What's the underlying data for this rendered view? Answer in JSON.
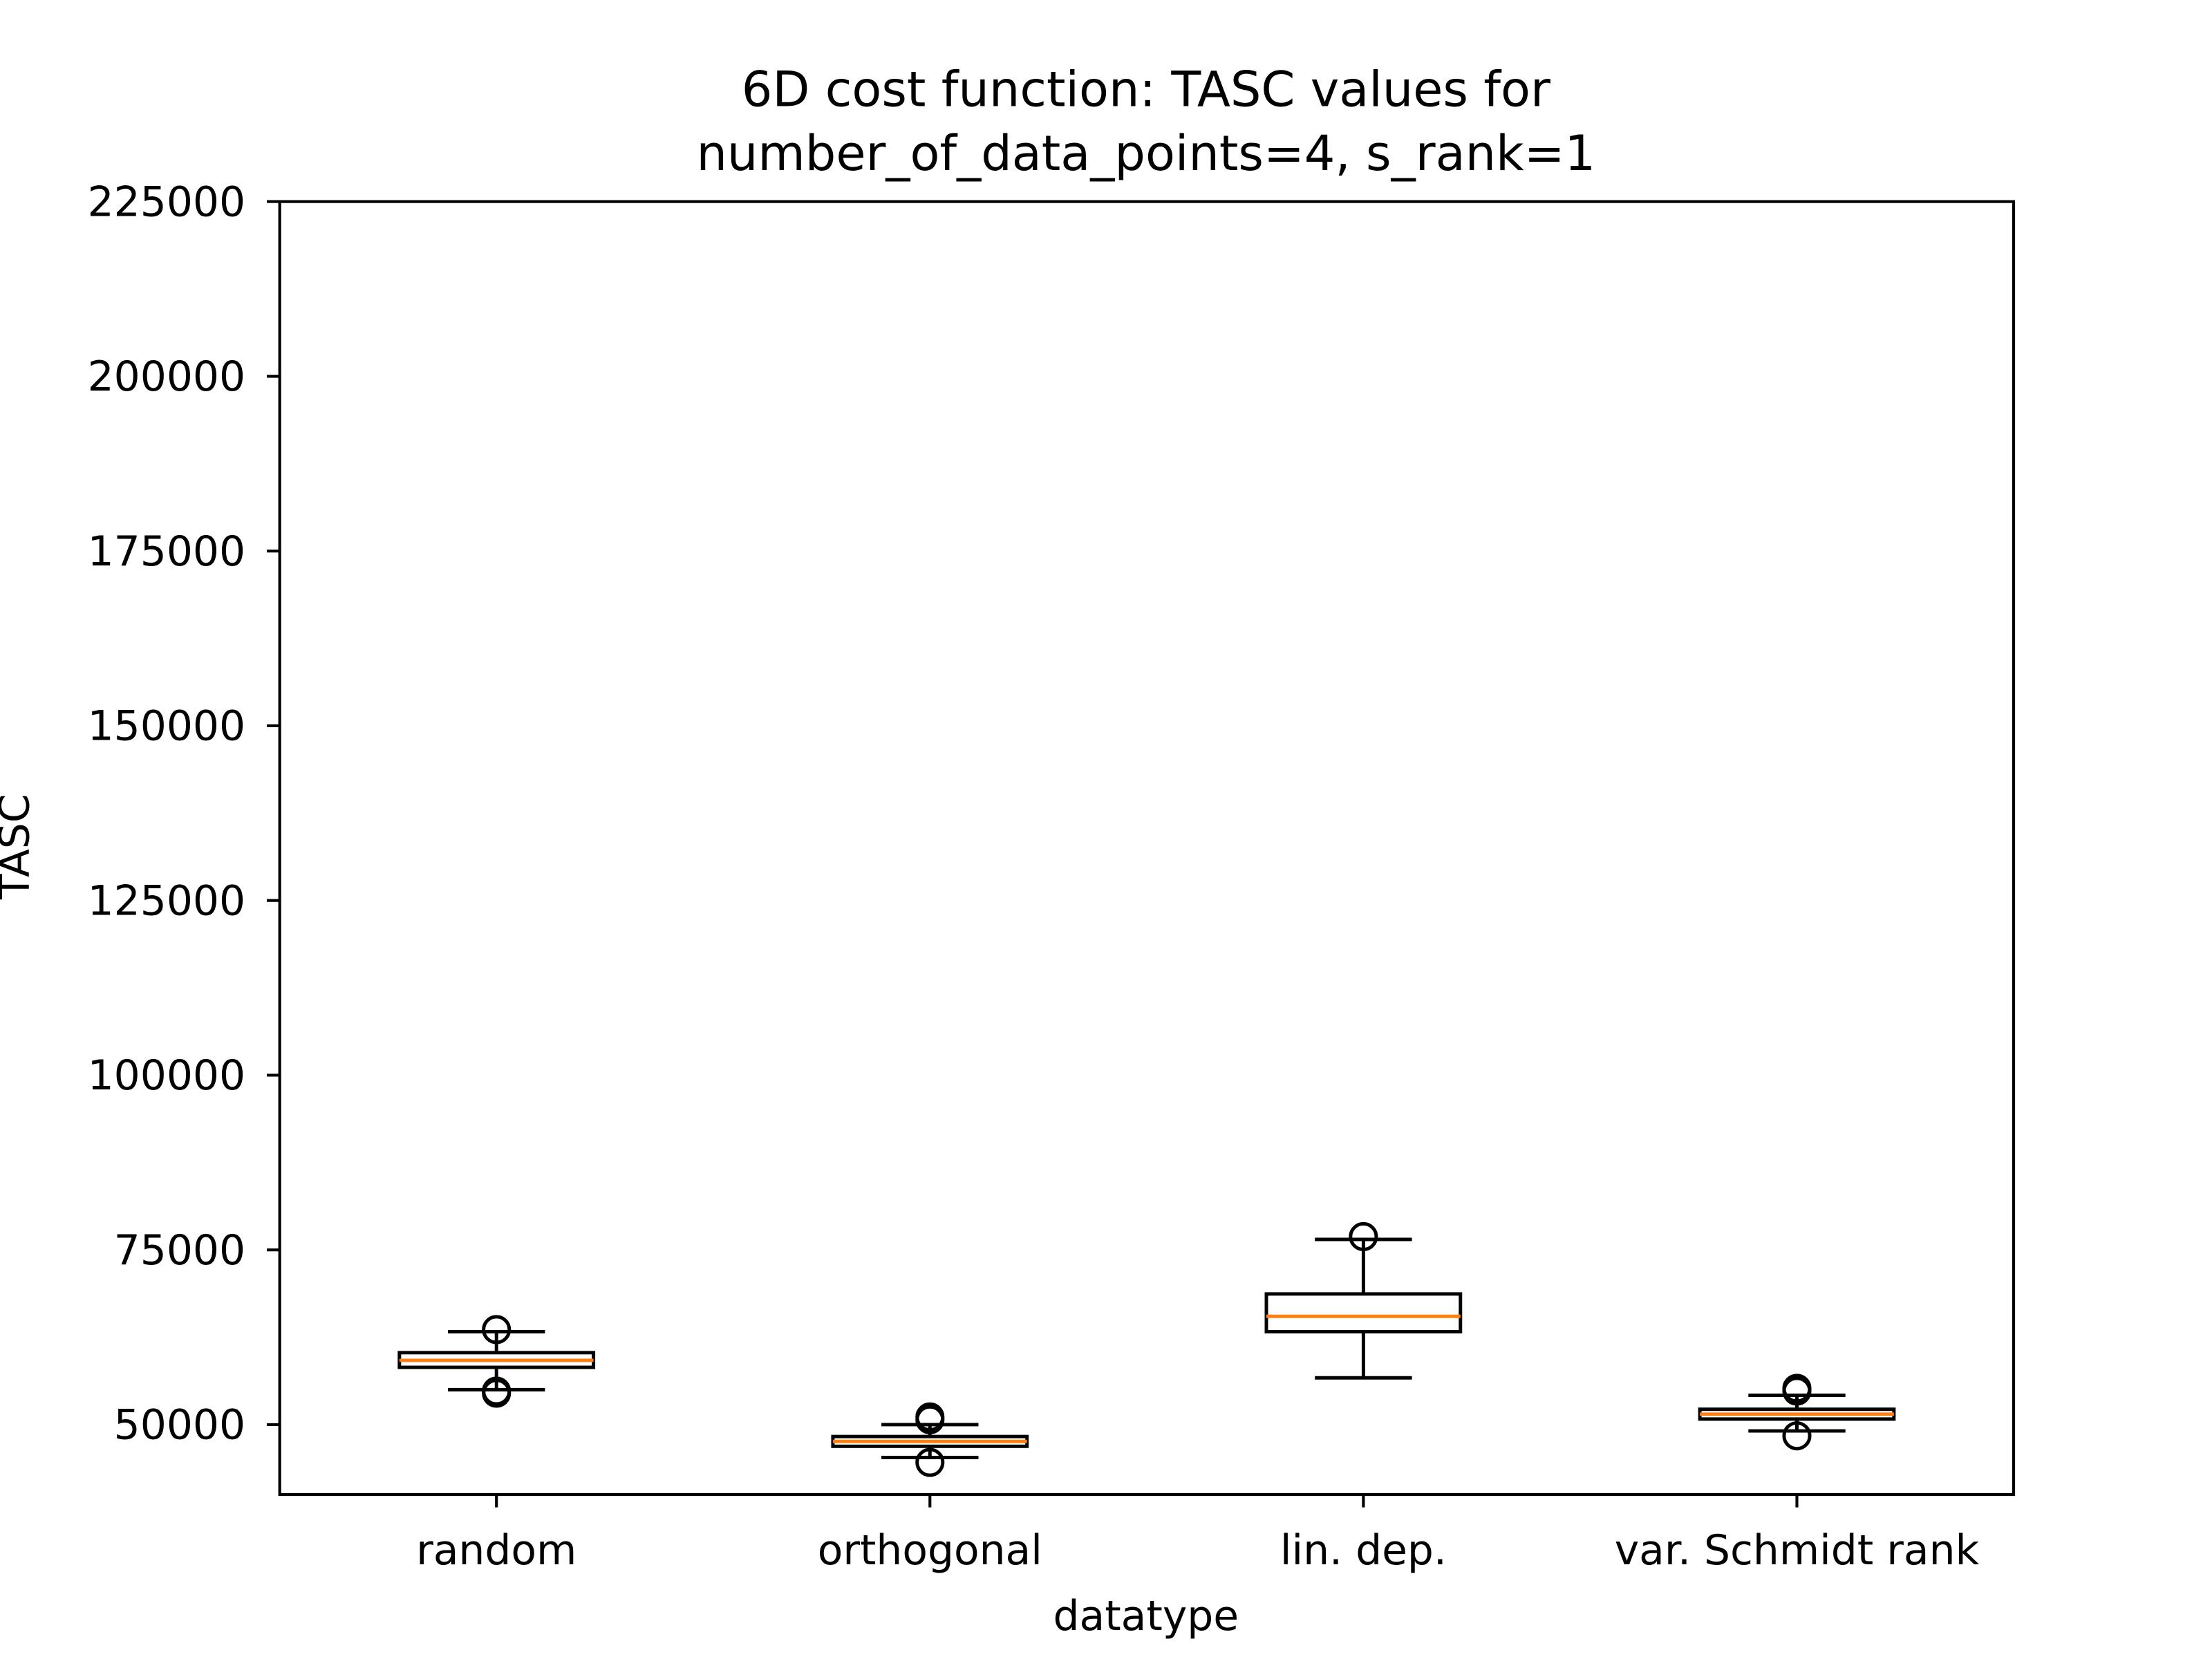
{
  "chart_data": {
    "type": "box",
    "title": "6D cost function: TASC values for\nnumber_of_data_points=4, s_rank=1",
    "title_lines": [
      "6D cost function: TASC values for",
      "number_of_data_points=4, s_rank=1"
    ],
    "xlabel": "datatype",
    "ylabel": "TASC",
    "ylim": [
      40000,
      225000
    ],
    "yticks": [
      50000,
      75000,
      100000,
      125000,
      150000,
      175000,
      200000,
      225000
    ],
    "yticklabels": [
      "50000",
      "75000",
      "100000",
      "125000",
      "150000",
      "175000",
      "200000",
      "225000"
    ],
    "categories": [
      "random",
      "orthogonal",
      "lin. dep.",
      "var. Schmidt rank"
    ],
    "grid": false,
    "colors": {
      "box": "#000000",
      "median": "#ff7f0e",
      "axes": "#000000"
    },
    "boxes": [
      {
        "category": "random",
        "whisker_low": 55000,
        "q1": 58200,
        "median": 59200,
        "q3": 60300,
        "whisker_high": 63300,
        "outliers": [
          63600,
          54500,
          54800
        ]
      },
      {
        "category": "orthogonal",
        "whisker_low": 45300,
        "q1": 46900,
        "median": 47600,
        "q3": 48300,
        "whisker_high": 50000,
        "outliers": [
          50700,
          51100,
          44600
        ]
      },
      {
        "category": "lin. dep.",
        "whisker_low": 56700,
        "q1": 63300,
        "median": 65500,
        "q3": 68700,
        "whisker_high": 76500,
        "outliers": [
          76900
        ]
      },
      {
        "category": "var. Schmidt rank",
        "whisker_low": 49100,
        "q1": 50800,
        "median": 51500,
        "q3": 52200,
        "whisker_high": 54200,
        "outliers": [
          54800,
          55200,
          48400
        ]
      }
    ]
  }
}
